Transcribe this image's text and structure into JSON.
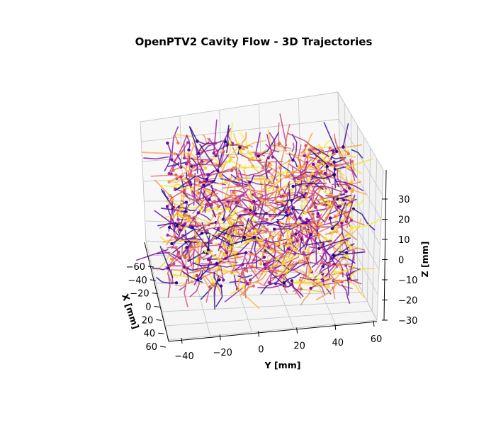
{
  "chart_data": {
    "type": "scatter",
    "subtype": "3d-trajectories",
    "title": "OpenPTV2 Cavity Flow - 3D Trajectories",
    "xlabel": "X [mm]",
    "ylabel": "Y [mm]",
    "zlabel": "Z [mm]",
    "x_ticks": [
      "−60",
      "−40",
      "−20",
      "0",
      "20",
      "40",
      "60"
    ],
    "y_ticks": [
      "−40",
      "−20",
      "0",
      "20",
      "40",
      "60"
    ],
    "z_ticks": [
      "−30",
      "−20",
      "−10",
      "0",
      "10",
      "20",
      "30"
    ],
    "xlim": [
      -65,
      65
    ],
    "ylim": [
      -45,
      65
    ],
    "zlim": [
      -33,
      40
    ],
    "colormap": "plasma",
    "colormap_stops": [
      "#0d0887",
      "#5c01a6",
      "#9c179e",
      "#cc4778",
      "#ed7953",
      "#fdb42f",
      "#f0f921"
    ],
    "trajectory_count": 900,
    "trajectory_start_marker": "dot",
    "grid": true
  }
}
